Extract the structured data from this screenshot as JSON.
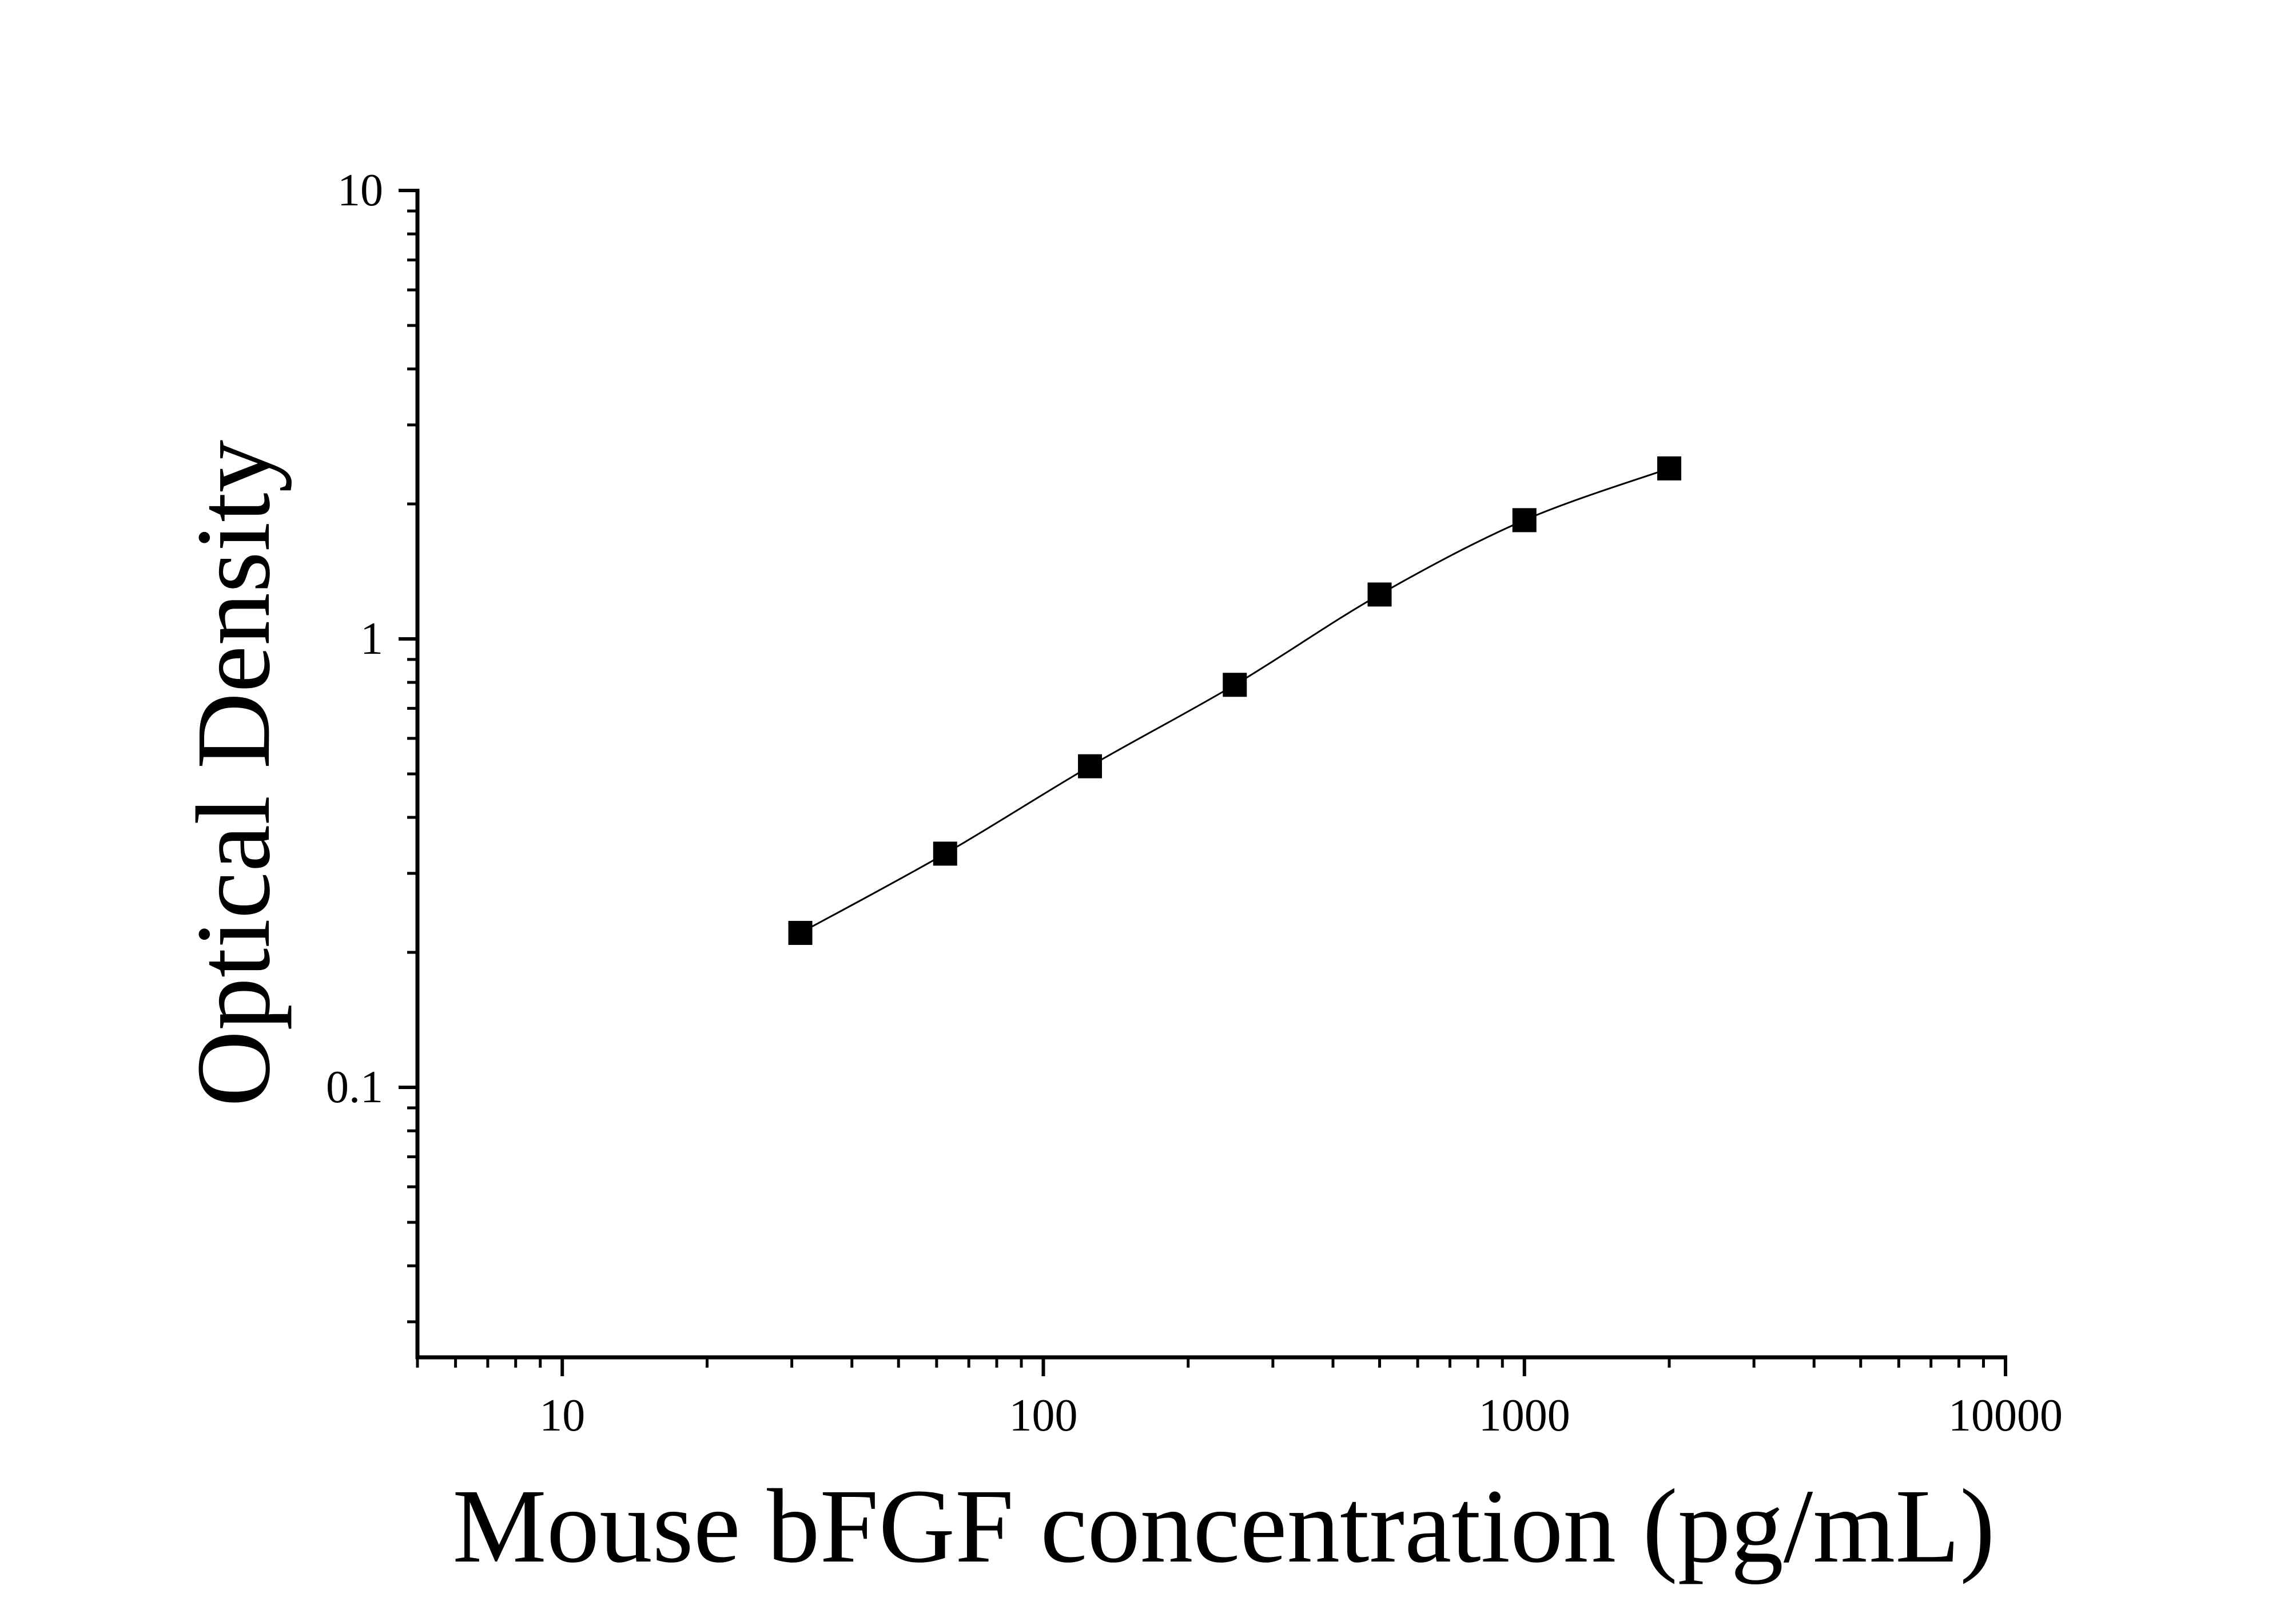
{
  "chart_data": {
    "type": "scatter",
    "xlabel": "Mouse bFGF concentration (pg/mL)",
    "ylabel": "Optical Density",
    "xscale": "log",
    "yscale": "log",
    "xlim": [
      5,
      10000
    ],
    "ylim": [
      0.025,
      10
    ],
    "xticks": [
      10,
      100,
      1000,
      10000
    ],
    "yticks": [
      0.1,
      1,
      10
    ],
    "xminorticks": [
      5,
      6,
      7,
      8,
      9,
      20,
      30,
      40,
      50,
      60,
      70,
      80,
      90,
      200,
      300,
      400,
      500,
      600,
      700,
      800,
      900,
      2000,
      3000,
      4000,
      5000,
      6000,
      7000,
      8000,
      9000
    ],
    "yminorticks": [
      0.03,
      0.04,
      0.05,
      0.06,
      0.07,
      0.08,
      0.09,
      0.2,
      0.3,
      0.4,
      0.5,
      0.6,
      0.7,
      0.8,
      0.9,
      2,
      3,
      4,
      5,
      6,
      7,
      8,
      9
    ],
    "fit_curve": true,
    "series": [
      {
        "color": "#000000",
        "x": [
          31.25,
          62.5,
          125,
          250,
          500,
          1000,
          2000
        ],
        "values": [
          0.221,
          0.332,
          0.52,
          0.79,
          1.256,
          1.84,
          2.4
        ]
      }
    ]
  }
}
